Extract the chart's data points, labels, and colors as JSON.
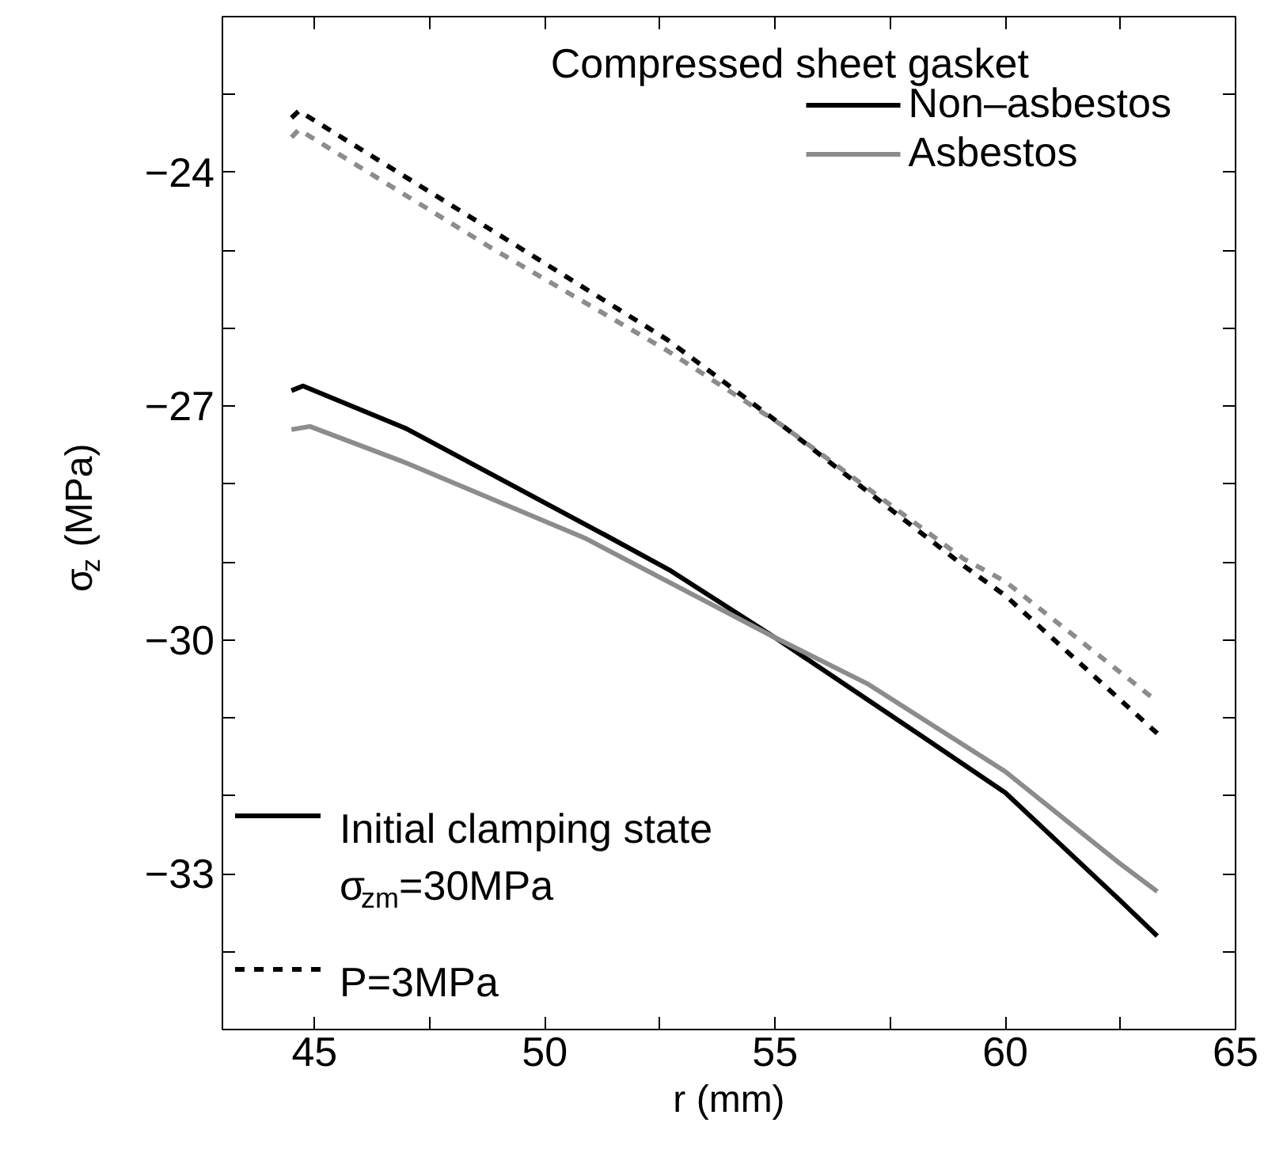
{
  "chart_data": {
    "type": "line",
    "title": "Compressed sheet gasket",
    "xlabel": "r (mm)",
    "ylabel": "σ$_{z}$ (MPa)",
    "xlim": [
      43,
      65
    ],
    "ylim": [
      -35,
      -22
    ],
    "xticks": [
      45,
      {
        "value": 47.5,
        "label": null
      },
      50,
      {
        "value": 52.5,
        "label": null
      },
      55,
      {
        "value": 57.5,
        "label": null
      },
      60,
      {
        "value": 62.5,
        "label": null
      },
      65
    ],
    "yticks": [
      {
        "value": -23,
        "label": null
      },
      -24,
      {
        "value": -25,
        "label": null
      },
      {
        "value": -26,
        "label": null
      },
      -27,
      {
        "value": -28,
        "label": null
      },
      {
        "value": -29,
        "label": null
      },
      -30,
      {
        "value": -31,
        "label": null
      },
      {
        "value": -32,
        "label": null
      },
      -33,
      {
        "value": -34,
        "label": null
      }
    ],
    "grid": false,
    "legend": "top right",
    "annotations": [
      "Initial clamping state σ$_{zm}$=30MPa",
      "P=3MPa"
    ],
    "series": [
      {
        "name": "Non–asbestos",
        "color": "#000000",
        "line_style": "solid",
        "x": [
          44.5,
          44.75,
          47.0,
          51.3,
          52.7,
          55.0,
          58.2,
          60.0,
          62.47,
          63.3
        ],
        "values": [
          -26.8,
          -26.74,
          -27.29,
          -28.65,
          -29.1,
          -29.97,
          -31.24,
          -31.96,
          -33.33,
          -33.8
        ]
      },
      {
        "name": "Asbestos",
        "color": "#8c8c8c",
        "line_style": "solid",
        "x": [
          44.5,
          44.9,
          47.0,
          50.86,
          55.0,
          57.0,
          60.0,
          62.47,
          63.3
        ],
        "values": [
          -27.3,
          -27.26,
          -27.73,
          -28.69,
          -29.97,
          -30.56,
          -31.69,
          -32.86,
          -33.23
        ]
      },
      {
        "color": "#000000",
        "line_style": "dashed",
        "x": [
          44.5,
          44.66,
          48.87,
          52.67,
          55.14,
          59.1,
          60.0,
          63.3
        ],
        "values": [
          -23.3,
          -23.21,
          -24.75,
          -26.15,
          -27.24,
          -29.05,
          -29.43,
          -31.2
        ]
      },
      {
        "color": "#8c8c8c",
        "line_style": "dashed",
        "x": [
          44.5,
          44.66,
          48.87,
          52.67,
          55.14,
          59.1,
          60.0,
          63.3
        ],
        "values": [
          -23.55,
          -23.45,
          -24.98,
          -26.29,
          -27.24,
          -28.96,
          -29.25,
          -30.79
        ]
      }
    ]
  }
}
